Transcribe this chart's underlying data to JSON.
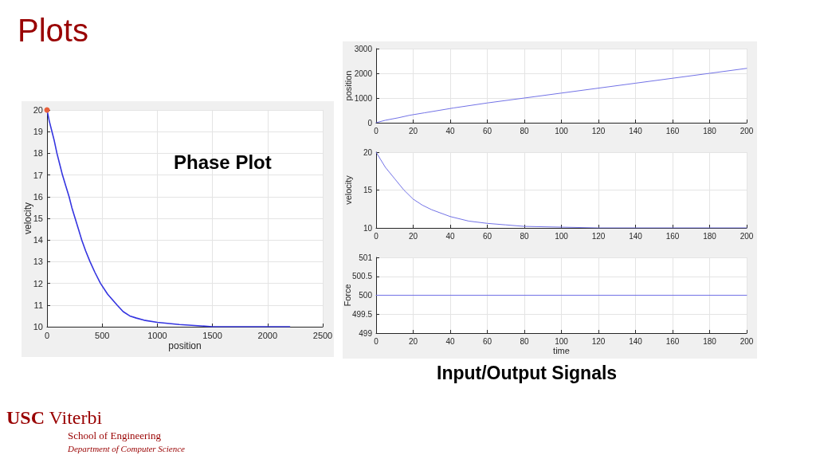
{
  "chart_data": [
    {
      "type": "line",
      "title": "Phase Plot",
      "xlabel": "position",
      "ylabel": "velocity",
      "x": [
        0,
        20,
        45,
        65,
        90,
        115,
        140,
        170,
        200,
        225,
        255,
        285,
        315,
        350,
        390,
        435,
        485,
        550,
        635,
        690,
        750,
        810,
        880,
        1000,
        1200,
        1500,
        2200
      ],
      "series": [
        {
          "color": "#3434e0",
          "values": [
            20,
            19.5,
            19,
            18.6,
            18,
            17.5,
            17,
            16.5,
            16,
            15.5,
            15,
            14.5,
            14,
            13.5,
            13,
            12.5,
            12,
            11.5,
            11,
            10.7,
            10.5,
            10.4,
            10.3,
            10.2,
            10.1,
            10,
            10
          ]
        },
        {
          "type": "scatter",
          "marker": "circle",
          "color": "#e8603c",
          "x": [
            0
          ],
          "values": [
            20
          ]
        }
      ],
      "xlim": [
        0,
        2500
      ],
      "xticks": [
        0,
        500,
        1000,
        1500,
        2000,
        2500
      ],
      "ylim": [
        10,
        20
      ],
      "yticks": [
        10,
        11,
        12,
        13,
        14,
        15,
        16,
        17,
        18,
        19,
        20
      ],
      "grid": true,
      "marker": "none",
      "line_style": "solid",
      "annotations": [
        "Plots",
        "USC Viterbi",
        "School of Engineering",
        "Department of Computer Science"
      ]
    },
    {
      "type": "line",
      "ylabel": "position",
      "x": [
        0,
        5,
        12,
        18,
        26,
        34,
        42,
        60,
        80,
        100,
        120,
        140,
        160,
        180,
        200
      ],
      "series": [
        {
          "color": "#7272e6",
          "values": [
            0,
            100,
            200,
            300,
            400,
            500,
            600,
            800,
            1000,
            1200,
            1400,
            1600,
            1800,
            2000,
            2200
          ]
        }
      ],
      "xlim": [
        0,
        200
      ],
      "xticks": [
        0,
        20,
        40,
        60,
        80,
        100,
        120,
        140,
        160,
        180,
        200
      ],
      "ylim": [
        0,
        3000
      ],
      "yticks": [
        0,
        1000,
        2000,
        3000
      ],
      "grid": true,
      "marker": "none",
      "line_style": "solid"
    },
    {
      "type": "line",
      "ylabel": "velocity",
      "x": [
        0,
        5,
        10,
        15,
        20,
        25,
        30,
        40,
        50,
        60,
        70,
        80,
        100,
        120,
        200
      ],
      "series": [
        {
          "color": "#7272e6",
          "values": [
            20,
            18,
            16.5,
            15,
            13.8,
            13,
            12.4,
            11.5,
            10.9,
            10.6,
            10.4,
            10.2,
            10.1,
            10,
            10
          ]
        }
      ],
      "xlim": [
        0,
        200
      ],
      "xticks": [
        0,
        20,
        40,
        60,
        80,
        100,
        120,
        140,
        160,
        180,
        200
      ],
      "ylim": [
        10,
        20
      ],
      "yticks": [
        10,
        15,
        20
      ],
      "grid": true,
      "marker": "none",
      "line_style": "solid"
    },
    {
      "type": "line",
      "xlabel": "time",
      "ylabel": "Force",
      "x": [
        0,
        200
      ],
      "series": [
        {
          "color": "#7272e6",
          "values": [
            500,
            500
          ]
        }
      ],
      "xlim": [
        0,
        200
      ],
      "xticks": [
        0,
        20,
        40,
        60,
        80,
        100,
        120,
        140,
        160,
        180,
        200
      ],
      "ylim": [
        499,
        501
      ],
      "yticks": [
        499,
        499.5,
        500,
        500.5,
        501
      ],
      "grid": true,
      "marker": "none",
      "line_style": "solid",
      "annotations": [
        "Input/Output Signals"
      ]
    }
  ]
}
